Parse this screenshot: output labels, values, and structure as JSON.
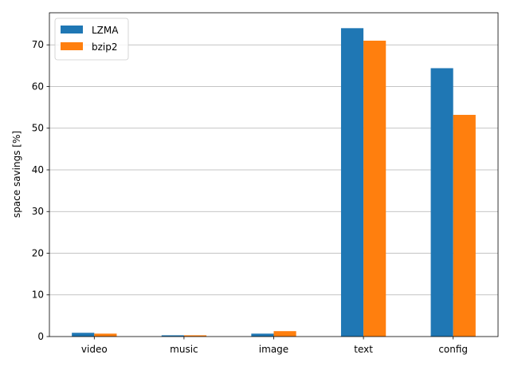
{
  "chart_data": {
    "type": "bar",
    "title": "",
    "xlabel": "",
    "ylabel": "space savings [%]",
    "categories": [
      "video",
      "music",
      "image",
      "text",
      "config"
    ],
    "series": [
      {
        "name": "LZMA",
        "color": "#1f77b4",
        "values": [
          0.9,
          0.3,
          0.7,
          74.0,
          64.4
        ]
      },
      {
        "name": "bzip2",
        "color": "#ff7f0e",
        "values": [
          0.7,
          0.3,
          1.3,
          71.0,
          53.2
        ]
      }
    ],
    "ylim": [
      0,
      77.7
    ],
    "yticks": [
      0,
      10,
      20,
      30,
      40,
      50,
      60,
      70
    ],
    "grid": {
      "y": true,
      "x": false,
      "color": "#b0b0b0"
    },
    "legend": {
      "placement": "top-left"
    }
  }
}
